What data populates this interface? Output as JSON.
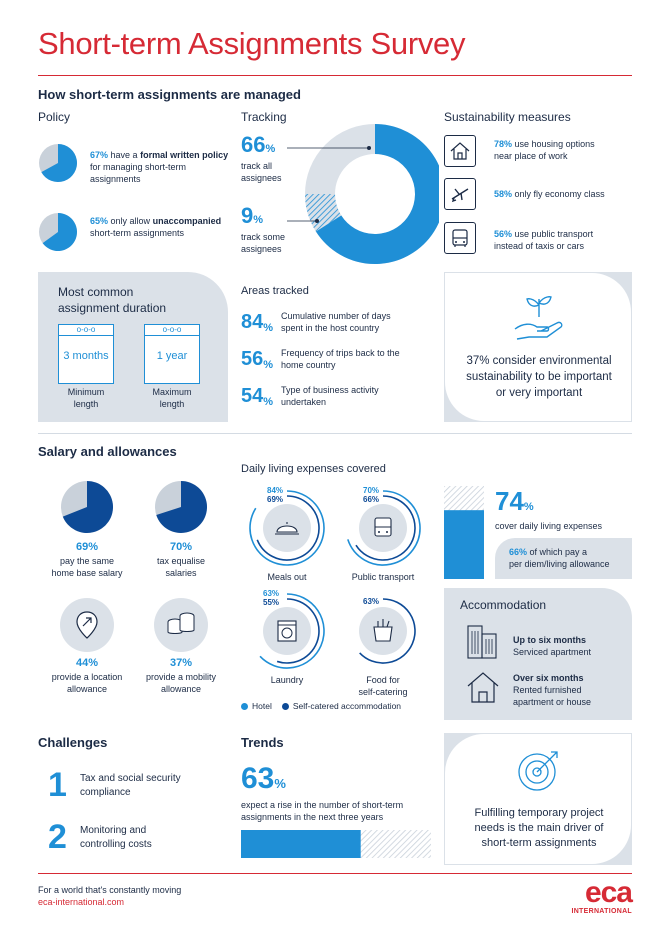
{
  "title": "Short-term Assignments Survey",
  "managed": {
    "heading": "How short-term assignments are managed",
    "policy": {
      "label": "Policy",
      "items": [
        {
          "pct": "67%",
          "pre": "have a",
          "bold": "formal written policy",
          "post": "for managing short-term assignments",
          "value": 67
        },
        {
          "pct": "65%",
          "pre": "only allow",
          "bold": "unaccompanied",
          "post": "short-term assignments",
          "value": 65
        }
      ]
    },
    "tracking": {
      "label": "Tracking",
      "all": {
        "num": "66",
        "sign": "%",
        "text1": "track all",
        "text2": "assignees",
        "value": 66
      },
      "some": {
        "num": "9",
        "sign": "%",
        "text1": "track some",
        "text2": "assignees",
        "value": 9
      }
    },
    "sustainability": {
      "label": "Sustainability measures",
      "items": [
        {
          "icon": "house-icon",
          "pct": "78%",
          "line1": "use housing options",
          "line2": "near place of work"
        },
        {
          "icon": "airplane-icon",
          "pct": "58%",
          "line1": "only fly economy class",
          "line2": ""
        },
        {
          "icon": "bus-icon",
          "pct": "56%",
          "line1": "use public transport",
          "line2": "instead of taxis or cars"
        }
      ]
    },
    "duration": {
      "title1": "Most common",
      "title2": "assignment duration",
      "min": {
        "value": "3",
        "unit": "months",
        "label1": "Minimum",
        "label2": "length"
      },
      "max": {
        "value": "1",
        "unit": "year",
        "label1": "Maximum",
        "label2": "length"
      }
    },
    "areas": {
      "label": "Areas tracked",
      "items": [
        {
          "num": "84",
          "sign": "%",
          "line1": "Cumulative number of days",
          "line2": "spent in the host country"
        },
        {
          "num": "56",
          "sign": "%",
          "line1": "Frequency of trips back to the",
          "line2": "home country"
        },
        {
          "num": "54",
          "sign": "%",
          "line1": "Type of business activity",
          "line2": "undertaken"
        }
      ]
    },
    "environment": {
      "line1": "37% consider environmental",
      "line2": "sustainability to be important",
      "line3": "or very important"
    }
  },
  "salary": {
    "heading": "Salary and allowances",
    "items": [
      {
        "pct": "69%",
        "line1": "pay the same",
        "line2": "home base salary",
        "value": 69
      },
      {
        "pct": "70%",
        "line1": "tax equalise",
        "line2": "salaries",
        "value": 70
      },
      {
        "pct": "44%",
        "line1": "provide a location",
        "line2": "allowance",
        "icon": "location-arrow-icon"
      },
      {
        "pct": "37%",
        "line1": "provide a mobility",
        "line2": "allowance",
        "icon": "coins-icon"
      }
    ]
  },
  "daily": {
    "label": "Daily living expenses covered",
    "items": [
      {
        "hotel": "84%",
        "self": "69%",
        "hotel_value": 84,
        "self_value": 69,
        "label1": "Meals out",
        "label2": "",
        "icon": "cloche-icon"
      },
      {
        "hotel": "70%",
        "self": "66%",
        "hotel_value": 70,
        "self_value": 66,
        "label1": "Public transport",
        "label2": "",
        "icon": "bus-icon"
      },
      {
        "hotel": "63%",
        "self": "55%",
        "hotel_value": 63,
        "self_value": 55,
        "label1": "Laundry",
        "label2": "",
        "icon": "washing-machine-icon"
      },
      {
        "hotel": "",
        "self": "63%",
        "hotel_value": 0,
        "self_value": 63,
        "label1": "Food for",
        "label2": "self-catering",
        "icon": "grocery-bag-icon"
      }
    ],
    "legend": {
      "hotel": "Hotel",
      "self": "Self-catered accommodation"
    },
    "colors": {
      "hotel": "#1f8fd6",
      "self": "#0d4a96"
    }
  },
  "cover": {
    "num": "74",
    "sign": "%",
    "text": "cover daily living expenses",
    "value": 74,
    "sub_pct": "66%",
    "sub_line1": "of which pay a",
    "sub_line2": "per diem/living allowance"
  },
  "accommodation": {
    "label": "Accommodation",
    "items": [
      {
        "icon": "apartment-building-icon",
        "title": "Up to six months",
        "line1": "Serviced apartment",
        "line2": ""
      },
      {
        "icon": "house-icon",
        "title": "Over six months",
        "line1": "Rented furnished",
        "line2": "apartment or house"
      }
    ]
  },
  "challenges": {
    "label": "Challenges",
    "items": [
      {
        "num": "1",
        "line1": "Tax and social security",
        "line2": "compliance"
      },
      {
        "num": "2",
        "line1": "Monitoring and",
        "line2": "controlling costs"
      }
    ]
  },
  "trends": {
    "label": "Trends",
    "num": "63",
    "sign": "%",
    "value": 63,
    "line1": "expect a rise in the number of short-term",
    "line2": "assignments in the next three years"
  },
  "driver": {
    "line1": "Fulfilling temporary project",
    "line2": "needs is the main driver of",
    "line3": "short-term assignments"
  },
  "footer": {
    "tagline": "For a world that's constantly moving",
    "url": "eca-international.com",
    "logo": "eca",
    "logo_sub": "INTERNATIONAL"
  }
}
